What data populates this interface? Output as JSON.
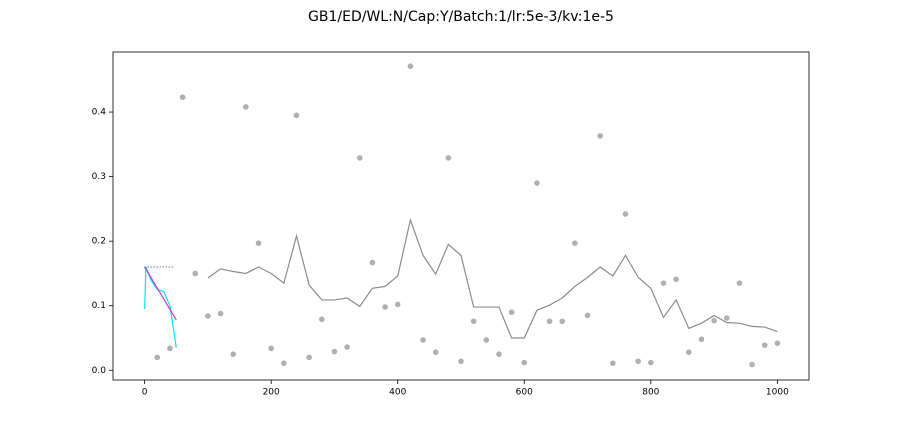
{
  "chart_data": {
    "type": "line",
    "title": "GB1/ED/WL:N/Cap:Y/Batch:1/lr:5e-3/kv:1e-5",
    "xlim": [
      -50,
      1050
    ],
    "ylim": [
      -0.015,
      0.493
    ],
    "xticks": [
      0,
      200,
      400,
      600,
      800,
      1000
    ],
    "yticks": [
      {
        "value": 0,
        "label": "0.0"
      },
      0.1,
      0.2,
      0.3,
      0.4
    ],
    "series": [
      {
        "kind": "scatter",
        "color": "#b0b0b0",
        "x": [
          20,
          40,
          60,
          80,
          100,
          120,
          140,
          160,
          180,
          200,
          220,
          240,
          260,
          280,
          300,
          320,
          340,
          360,
          380,
          400,
          420,
          440,
          460,
          480,
          500,
          520,
          540,
          560,
          580,
          600,
          620,
          640,
          660,
          680,
          700,
          720,
          740,
          760,
          780,
          800,
          820,
          840,
          860,
          880,
          900,
          920,
          940,
          960,
          980,
          1000
        ],
        "values": [
          0.02,
          0.034,
          0.423,
          0.15,
          0.084,
          0.088,
          0.025,
          0.408,
          0.197,
          0.034,
          0.011,
          0.395,
          0.02,
          0.079,
          0.029,
          0.036,
          0.329,
          0.167,
          0.098,
          0.102,
          0.471,
          0.047,
          0.028,
          0.329,
          0.014,
          0.076,
          0.047,
          0.025,
          0.09,
          0.012,
          0.29,
          0.076,
          0.076,
          0.197,
          0.085,
          0.363,
          0.011,
          0.242,
          0.014,
          0.012,
          0.135,
          0.141,
          0.028,
          0.048,
          0.077,
          0.081,
          0.135,
          0.009,
          0.039,
          0.042
        ]
      },
      {
        "kind": "line",
        "color": "#8c8c8c",
        "x": [
          100,
          120,
          140,
          160,
          180,
          200,
          220,
          240,
          260,
          280,
          300,
          320,
          340,
          360,
          380,
          400,
          420,
          440,
          460,
          480,
          500,
          520,
          540,
          560,
          580,
          600,
          620,
          640,
          660,
          680,
          700,
          720,
          740,
          760,
          780,
          800,
          820,
          840,
          860,
          880,
          900,
          920,
          940,
          960,
          980,
          1000
        ],
        "values": [
          0.143,
          0.157,
          0.153,
          0.15,
          0.16,
          0.15,
          0.135,
          0.208,
          0.132,
          0.109,
          0.109,
          0.112,
          0.099,
          0.127,
          0.13,
          0.146,
          0.233,
          0.178,
          0.149,
          0.195,
          0.178,
          0.098,
          0.098,
          0.098,
          0.05,
          0.05,
          0.093,
          0.101,
          0.112,
          0.13,
          0.144,
          0.16,
          0.146,
          0.178,
          0.144,
          0.127,
          0.082,
          0.109,
          0.065,
          0.073,
          0.085,
          0.074,
          0.073,
          0.068,
          0.067,
          0.06
        ]
      },
      {
        "kind": "line",
        "color": "#00e5ff",
        "x": [
          0,
          2,
          10,
          20,
          30,
          40,
          50
        ],
        "values": [
          0.095,
          0.16,
          0.14,
          0.125,
          0.122,
          0.1,
          0.035
        ]
      },
      {
        "kind": "line",
        "color": "#c040d0",
        "x": [
          0,
          50
        ],
        "values": [
          0.16,
          0.078
        ]
      },
      {
        "kind": "dotted",
        "color": "#000000",
        "x": [
          0,
          45
        ],
        "values": [
          0.16,
          0.16
        ]
      }
    ]
  }
}
